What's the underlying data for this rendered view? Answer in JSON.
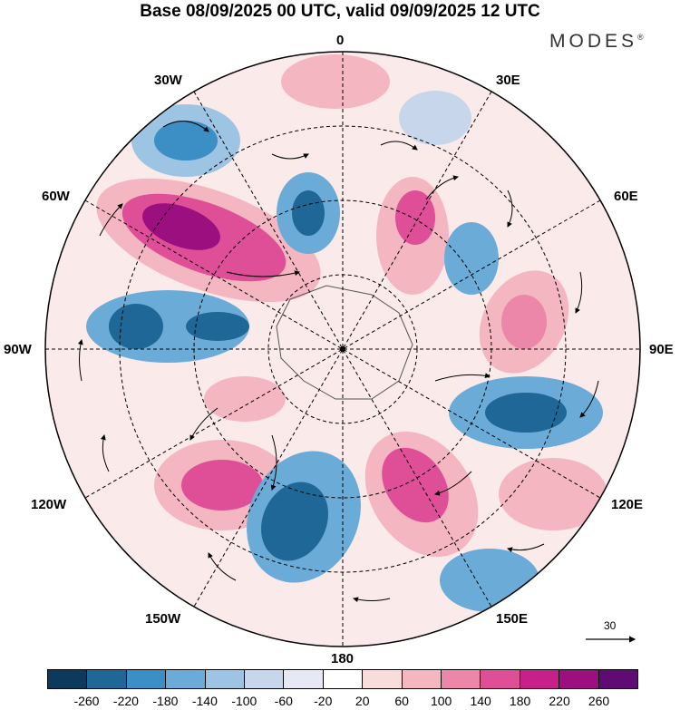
{
  "title": "Base 08/09/2025 00 UTC, valid 09/09/2025 12 UTC",
  "brand": "MODES",
  "brand_mark": "®",
  "longitudes": {
    "lon0": "0",
    "lon30e": "30E",
    "lon60e": "60E",
    "lon90e": "90E",
    "lon120e": "120E",
    "lon150e": "150E",
    "lon180": "180",
    "lon150w": "150W",
    "lon120w": "120W",
    "lon90w": "90W",
    "lon60w": "60W",
    "lon30w": "30W"
  },
  "vector_reference": "30",
  "colorbar": {
    "colors": [
      "#0b3a5c",
      "#1e6796",
      "#3b8fc4",
      "#6aabd8",
      "#9dc4e3",
      "#c7d6ea",
      "#e6e8f3",
      "#ffffff",
      "#f9dcdc",
      "#f4b6c1",
      "#ec87aa",
      "#de4f98",
      "#c8208a",
      "#9c0f7f",
      "#5e0c73"
    ],
    "ticks": [
      "-260",
      "-220",
      "-180",
      "-140",
      "-100",
      "-60",
      "-20",
      "20",
      "60",
      "100",
      "140",
      "180",
      "220",
      "260"
    ]
  },
  "colors": {
    "negative_strong": "#1e6796",
    "negative_mid": "#6aabd8",
    "negative_light": "#c7d6ea",
    "positive_light": "#f4b6c1",
    "positive_mid": "#de4f98",
    "positive_strong": "#9c0f7f"
  }
}
